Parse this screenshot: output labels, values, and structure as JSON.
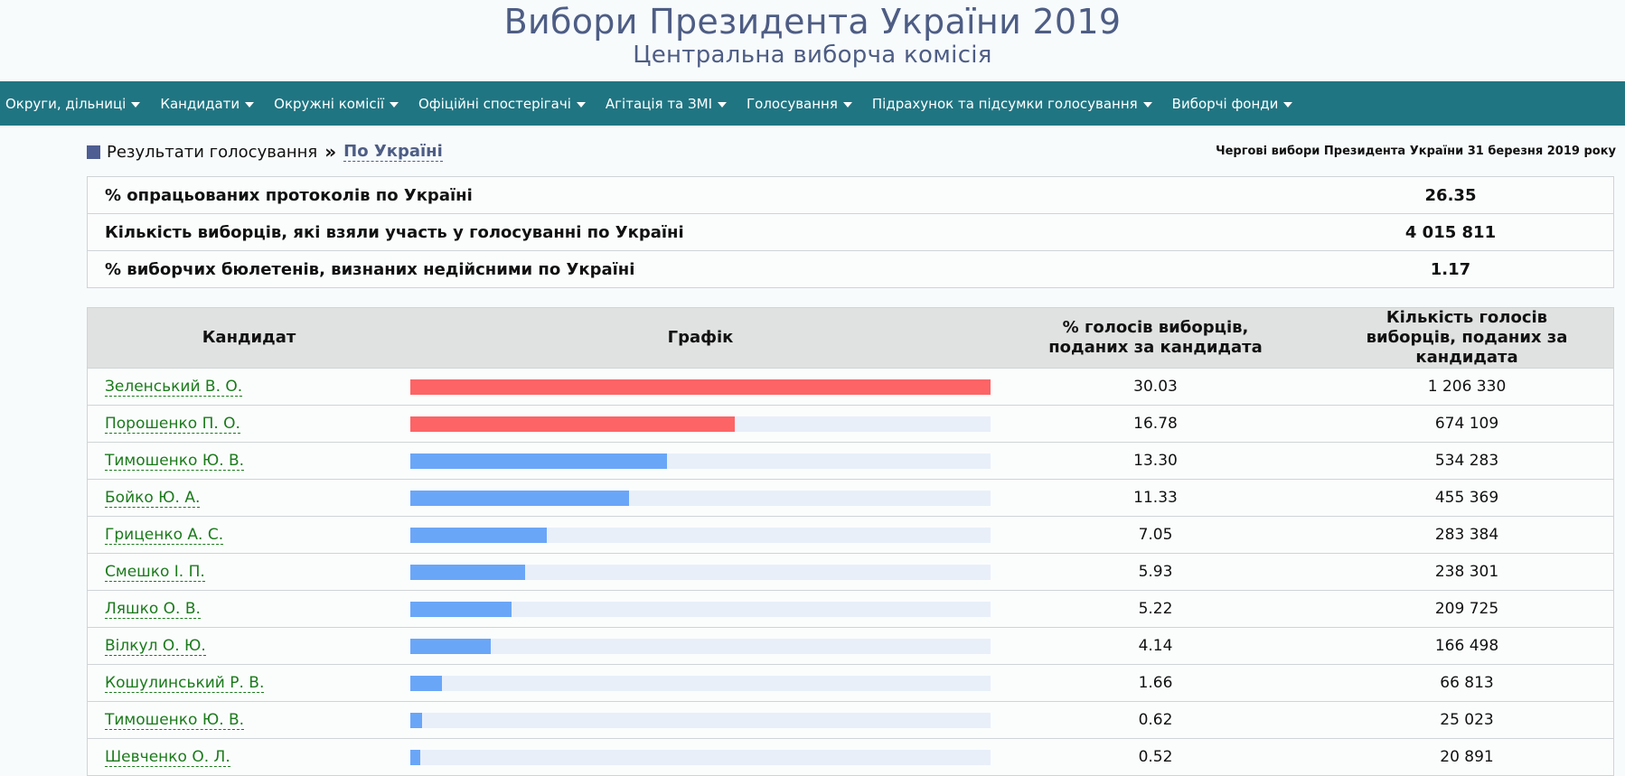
{
  "header": {
    "title": "Вибори Президента України 2019",
    "subtitle": "Центральна виборча комісія"
  },
  "nav": {
    "items": [
      "Округи, дільниці",
      "Кандидати",
      "Окружні комісії",
      "Офіційні спостерігачі",
      "Агітація та ЗМІ",
      "Голосування",
      "Підрахунок та підсумки голосування",
      "Виборчі фонди"
    ]
  },
  "breadcrumb": {
    "section": "Результати голосування",
    "separator": "»",
    "current": "По Україні",
    "election_name": "Чергові вибори Президента України 31 березня 2019 року"
  },
  "summary": {
    "rows": [
      {
        "label": "% опрацьованих протоколів по Україні",
        "value": "26.35"
      },
      {
        "label": "Кількість виборців, які взяли участь у голосуванні по Україні",
        "value": "4 015 811"
      },
      {
        "label": "% виборчих бюлетенів, визнаних недійсними по Україні",
        "value": "1.17"
      }
    ]
  },
  "results": {
    "headers": {
      "candidate": "Кандидат",
      "chart": "Графік",
      "pct": "% голосів виборців, поданих за кандидата",
      "count": "Кількість голосів виборців, поданих за кандидата"
    },
    "colors": {
      "leader": "#fd6466",
      "other": "#6aa6f8",
      "track": "#e8eff9",
      "nav": "#207582",
      "title": "#4e5d84",
      "link": "#1b7a1b"
    },
    "max_pct": 30.03
  },
  "chart_data": {
    "type": "bar",
    "categories": [
      "Зеленський В. О.",
      "Порошенко П. О.",
      "Тимошенко Ю. В.",
      "Бойко Ю. А.",
      "Гриценко А. С.",
      "Смешко І. П.",
      "Ляшко О. В.",
      "Вілкул О. Ю.",
      "Кошулинський Р. В.",
      "Тимошенко Ю. В.",
      "Шевченко О. Л."
    ],
    "values": [
      30.03,
      16.78,
      13.3,
      11.33,
      7.05,
      5.93,
      5.22,
      4.14,
      1.66,
      0.62,
      0.52
    ],
    "pct_labels": [
      "30.03",
      "16.78",
      "13.30",
      "11.33",
      "7.05",
      "5.93",
      "5.22",
      "4.14",
      "1.66",
      "0.62",
      "0.52"
    ],
    "counts": [
      "1 206 330",
      "674 109",
      "534 283",
      "455 369",
      "283 384",
      "238 301",
      "209 725",
      "166 498",
      "66 813",
      "25 023",
      "20 891"
    ],
    "highlight": [
      true,
      true,
      false,
      false,
      false,
      false,
      false,
      false,
      false,
      false,
      false
    ],
    "title": "Графік"
  }
}
